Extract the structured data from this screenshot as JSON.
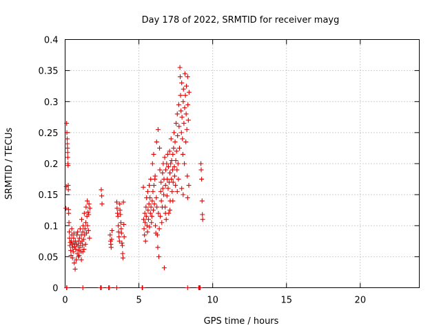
{
  "chart_data": {
    "type": "scatter",
    "title": "Day 178 of 2022, SRMTID for receiver mayg",
    "xlabel": "GPS time / hours",
    "ylabel": "SRMTID / TECUs",
    "xlim": [
      0,
      24
    ],
    "ylim": [
      0,
      0.4
    ],
    "xticks": [
      0,
      5,
      10,
      15,
      20
    ],
    "xtick_labels": [
      "0",
      "5",
      "10",
      "15",
      "20"
    ],
    "yticks": [
      0,
      0.05,
      0.1,
      0.15,
      0.2,
      0.25,
      0.3,
      0.35,
      0.4
    ],
    "ytick_labels": [
      "0",
      "0.05",
      "0.1",
      "0.15",
      "0.2",
      "0.25",
      "0.3",
      "0.35",
      "0.4"
    ],
    "grid": true,
    "marker": "+",
    "color": "#e00000",
    "series": [
      {
        "name": "SRMTID",
        "points": [
          [
            0.05,
            0.128
          ],
          [
            0.08,
            0.163
          ],
          [
            0.1,
            0.265
          ],
          [
            0.12,
            0.25
          ],
          [
            0.14,
            0.24
          ],
          [
            0.15,
            0.232
          ],
          [
            0.16,
            0.225
          ],
          [
            0.17,
            0.218
          ],
          [
            0.18,
            0.21
          ],
          [
            0.19,
            0.2
          ],
          [
            0.2,
            0.197
          ],
          [
            0.21,
            0.165
          ],
          [
            0.22,
            0.158
          ],
          [
            0.23,
            0.126
          ],
          [
            0.24,
            0.12
          ],
          [
            0.26,
            0.105
          ],
          [
            0.28,
            0.09
          ],
          [
            0.3,
            0.08
          ],
          [
            0.32,
            0.068
          ],
          [
            0.35,
            0.073
          ],
          [
            0.38,
            0.06
          ],
          [
            0.4,
            0.052
          ],
          [
            0.42,
            0.075
          ],
          [
            0.45,
            0.085
          ],
          [
            0.48,
            0.07
          ],
          [
            0.5,
            0.048
          ],
          [
            0.52,
            0.065
          ],
          [
            0.55,
            0.058
          ],
          [
            0.58,
            0.08
          ],
          [
            0.6,
            0.072
          ],
          [
            0.62,
            0.04
          ],
          [
            0.65,
            0.066
          ],
          [
            0.68,
            0.03
          ],
          [
            0.7,
            0.075
          ],
          [
            0.72,
            0.062
          ],
          [
            0.75,
            0.045
          ],
          [
            0.78,
            0.07
          ],
          [
            0.8,
            0.085
          ],
          [
            0.82,
            0.055
          ],
          [
            0.85,
            0.09
          ],
          [
            0.88,
            0.068
          ],
          [
            0.9,
            0.075
          ],
          [
            0.93,
            0.06
          ],
          [
            0.95,
            0.052
          ],
          [
            0.98,
            0.08
          ],
          [
            1.0,
            0.065
          ],
          [
            1.02,
            0.095
          ],
          [
            1.05,
            0.072
          ],
          [
            1.08,
            0.058
          ],
          [
            1.1,
            0.085
          ],
          [
            1.12,
            0.11
          ],
          [
            1.15,
            0.075
          ],
          [
            1.18,
            0.068
          ],
          [
            1.2,
            0.09
          ],
          [
            1.22,
            0.1
          ],
          [
            1.25,
            0.078
          ],
          [
            1.28,
            0.062
          ],
          [
            1.3,
            0.12
          ],
          [
            1.32,
            0.085
          ],
          [
            1.35,
            0.095
          ],
          [
            1.38,
            0.07
          ],
          [
            1.4,
            0.105
          ],
          [
            1.42,
            0.13
          ],
          [
            1.45,
            0.088
          ],
          [
            1.48,
            0.115
          ],
          [
            1.5,
            0.14
          ],
          [
            1.52,
            0.1
          ],
          [
            1.55,
            0.122
          ],
          [
            1.58,
            0.092
          ],
          [
            1.6,
            0.118
          ],
          [
            1.62,
            0.135
          ],
          [
            1.65,
            0.08
          ],
          [
            1.68,
            0.128
          ],
          [
            1.2,
            0.058
          ],
          [
            0.9,
            0.05
          ],
          [
            1.1,
            0.045
          ],
          [
            0.6,
            0.088
          ],
          [
            0.45,
            0.095
          ],
          [
            2.45,
            0.158
          ],
          [
            2.48,
            0.148
          ],
          [
            2.5,
            0.135
          ],
          [
            3.05,
            0.085
          ],
          [
            3.08,
            0.075
          ],
          [
            3.1,
            0.07
          ],
          [
            3.12,
            0.065
          ],
          [
            3.15,
            0.078
          ],
          [
            3.18,
            0.092
          ],
          [
            3.5,
            0.138
          ],
          [
            3.52,
            0.128
          ],
          [
            3.55,
            0.12
          ],
          [
            3.58,
            0.115
          ],
          [
            3.6,
            0.1
          ],
          [
            3.62,
            0.09
          ],
          [
            3.65,
            0.082
          ],
          [
            3.68,
            0.075
          ],
          [
            3.7,
            0.135
          ],
          [
            3.72,
            0.125
          ],
          [
            3.75,
            0.118
          ],
          [
            3.78,
            0.105
          ],
          [
            3.8,
            0.095
          ],
          [
            3.82,
            0.088
          ],
          [
            3.85,
            0.072
          ],
          [
            3.88,
            0.068
          ],
          [
            3.9,
            0.055
          ],
          [
            3.92,
            0.048
          ],
          [
            3.95,
            0.138
          ],
          [
            3.98,
            0.102
          ],
          [
            4.0,
            0.082
          ],
          [
            5.3,
            0.162
          ],
          [
            5.32,
            0.11
          ],
          [
            5.35,
            0.095
          ],
          [
            5.38,
            0.085
          ],
          [
            5.4,
            0.12
          ],
          [
            5.42,
            0.105
          ],
          [
            5.45,
            0.075
          ],
          [
            5.48,
            0.13
          ],
          [
            5.5,
            0.115
          ],
          [
            5.52,
            0.145
          ],
          [
            5.55,
            0.1
          ],
          [
            5.58,
            0.09
          ],
          [
            5.6,
            0.155
          ],
          [
            5.62,
            0.125
          ],
          [
            5.65,
            0.11
          ],
          [
            5.68,
            0.135
          ],
          [
            5.7,
            0.165
          ],
          [
            5.72,
            0.098
          ],
          [
            5.75,
            0.145
          ],
          [
            5.78,
            0.12
          ],
          [
            5.8,
            0.175
          ],
          [
            5.82,
            0.13
          ],
          [
            5.85,
            0.105
          ],
          [
            5.88,
            0.115
          ],
          [
            5.9,
            0.14
          ],
          [
            5.92,
            0.2
          ],
          [
            5.95,
            0.155
          ],
          [
            5.98,
            0.125
          ],
          [
            6.0,
            0.215
          ],
          [
            6.02,
            0.165
          ],
          [
            6.05,
            0.135
          ],
          [
            6.08,
            0.175
          ],
          [
            6.1,
            0.18
          ],
          [
            6.12,
            0.1
          ],
          [
            6.15,
            0.088
          ],
          [
            6.18,
            0.145
          ],
          [
            6.2,
            0.235
          ],
          [
            6.22,
            0.13
          ],
          [
            6.25,
            0.085
          ],
          [
            6.28,
            0.065
          ],
          [
            6.3,
            0.255
          ],
          [
            6.32,
            0.12
          ],
          [
            6.35,
            0.05
          ],
          [
            6.38,
            0.095
          ],
          [
            6.4,
            0.225
          ],
          [
            6.42,
            0.19
          ],
          [
            6.45,
            0.115
          ],
          [
            6.48,
            0.155
          ],
          [
            6.5,
            0.17
          ],
          [
            6.52,
            0.14
          ],
          [
            6.55,
            0.105
          ],
          [
            6.58,
            0.13
          ],
          [
            6.6,
            0.185
          ],
          [
            6.62,
            0.16
          ],
          [
            6.65,
            0.2
          ],
          [
            6.68,
            0.15
          ],
          [
            6.7,
            0.175
          ],
          [
            6.72,
            0.032
          ],
          [
            6.75,
            0.21
          ],
          [
            6.78,
            0.13
          ],
          [
            6.8,
            0.165
          ],
          [
            6.82,
            0.19
          ],
          [
            6.85,
            0.11
          ],
          [
            6.88,
            0.2
          ],
          [
            6.9,
            0.148
          ],
          [
            6.92,
            0.175
          ],
          [
            6.95,
            0.215
          ],
          [
            6.98,
            0.16
          ],
          [
            7.0,
            0.195
          ],
          [
            7.02,
            0.12
          ],
          [
            7.05,
            0.17
          ],
          [
            7.08,
            0.22
          ],
          [
            7.1,
            0.185
          ],
          [
            7.12,
            0.14
          ],
          [
            7.15,
            0.2
          ],
          [
            7.18,
            0.24
          ],
          [
            7.2,
            0.175
          ],
          [
            7.22,
            0.205
          ],
          [
            7.25,
            0.155
          ],
          [
            7.28,
            0.19
          ],
          [
            7.3,
            0.215
          ],
          [
            7.32,
            0.17
          ],
          [
            7.35,
            0.225
          ],
          [
            7.38,
            0.25
          ],
          [
            7.4,
            0.195
          ],
          [
            7.42,
            0.18
          ],
          [
            7.45,
            0.235
          ],
          [
            7.48,
            0.165
          ],
          [
            7.5,
            0.205
          ],
          [
            7.52,
            0.265
          ],
          [
            7.55,
            0.22
          ],
          [
            7.58,
            0.19
          ],
          [
            7.6,
            0.28
          ],
          [
            7.62,
            0.245
          ],
          [
            7.65,
            0.2
          ],
          [
            7.68,
            0.175
          ],
          [
            7.7,
            0.295
          ],
          [
            7.72,
            0.26
          ],
          [
            7.75,
            0.225
          ],
          [
            7.78,
            0.355
          ],
          [
            7.8,
            0.34
          ],
          [
            7.82,
            0.31
          ],
          [
            7.85,
            0.285
          ],
          [
            7.88,
            0.25
          ],
          [
            7.9,
            0.33
          ],
          [
            7.92,
            0.275
          ],
          [
            7.95,
            0.24
          ],
          [
            7.98,
            0.215
          ],
          [
            8.0,
            0.3
          ],
          [
            8.02,
            0.32
          ],
          [
            8.05,
            0.265
          ],
          [
            8.08,
            0.2
          ],
          [
            8.1,
            0.29
          ],
          [
            8.12,
            0.345
          ],
          [
            8.15,
            0.31
          ],
          [
            8.18,
            0.235
          ],
          [
            8.2,
            0.28
          ],
          [
            8.22,
            0.325
          ],
          [
            8.25,
            0.255
          ],
          [
            8.28,
            0.18
          ],
          [
            8.3,
            0.34
          ],
          [
            8.32,
            0.295
          ],
          [
            8.35,
            0.27
          ],
          [
            8.38,
            0.165
          ],
          [
            8.4,
            0.315
          ],
          [
            7.9,
            0.16
          ],
          [
            8.0,
            0.15
          ],
          [
            7.6,
            0.155
          ],
          [
            7.3,
            0.14
          ],
          [
            7.1,
            0.125
          ],
          [
            6.8,
            0.12
          ],
          [
            8.3,
            0.145
          ],
          [
            9.2,
            0.2
          ],
          [
            9.22,
            0.19
          ],
          [
            9.25,
            0.175
          ],
          [
            9.28,
            0.14
          ],
          [
            9.3,
            0.118
          ],
          [
            9.32,
            0.11
          ],
          [
            0.1,
            0.0
          ],
          [
            0.12,
            0.0
          ],
          [
            1.2,
            0.0
          ],
          [
            2.4,
            0.0
          ],
          [
            2.45,
            0.0
          ],
          [
            2.95,
            0.0
          ],
          [
            3.0,
            0.0
          ],
          [
            3.5,
            0.0
          ],
          [
            5.22,
            0.0
          ],
          [
            5.25,
            0.0
          ],
          [
            8.3,
            0.0
          ],
          [
            9.05,
            0.0
          ],
          [
            9.1,
            0.0
          ],
          [
            9.15,
            0.0
          ]
        ]
      }
    ]
  }
}
